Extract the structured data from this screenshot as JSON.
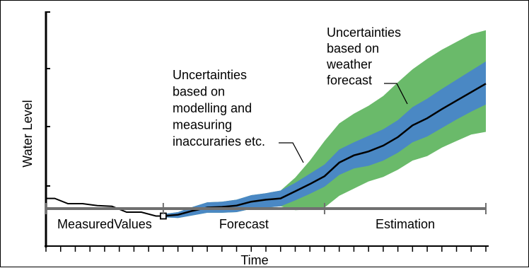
{
  "chart_data": {
    "type": "area",
    "ylabel": "Water Level",
    "xlabel": "Time",
    "grid": false,
    "phases": [
      {
        "label": "MeasuredValues",
        "start": 0,
        "end": 8
      },
      {
        "label": "Forecast",
        "start": 8,
        "end": 19
      },
      {
        "label": "Estimation",
        "start": 19,
        "end": 30
      }
    ],
    "xlim": [
      0,
      30
    ],
    "ylim": [
      0,
      3.6
    ],
    "measured": {
      "x": [
        0,
        0.6,
        1.5,
        2.5,
        3.5,
        4.5,
        5.5,
        6.5,
        7.5,
        8
      ],
      "y": [
        0.72,
        0.72,
        0.64,
        0.64,
        0.61,
        0.6,
        0.51,
        0.51,
        0.45,
        0.45
      ]
    },
    "forecast": {
      "x": [
        8,
        9,
        10,
        11,
        12,
        13,
        14,
        15,
        16,
        17,
        18,
        19,
        20,
        21,
        22,
        23,
        24,
        25,
        26,
        27,
        28,
        29,
        30
      ],
      "median": [
        0.45,
        0.47,
        0.53,
        0.58,
        0.59,
        0.61,
        0.67,
        0.7,
        0.72,
        0.83,
        0.94,
        1.06,
        1.27,
        1.38,
        1.44,
        1.53,
        1.66,
        1.84,
        1.95,
        2.09,
        2.22,
        2.35,
        2.48
      ],
      "inner_band": {
        "lower": [
          0.43,
          0.42,
          0.46,
          0.5,
          0.5,
          0.51,
          0.56,
          0.58,
          0.6,
          0.69,
          0.79,
          0.9,
          1.08,
          1.18,
          1.22,
          1.3,
          1.42,
          1.58,
          1.67,
          1.8,
          1.93,
          2.05,
          2.16
        ],
        "upper": [
          0.48,
          0.51,
          0.59,
          0.66,
          0.67,
          0.7,
          0.77,
          0.8,
          0.84,
          0.96,
          1.1,
          1.24,
          1.47,
          1.58,
          1.68,
          1.78,
          1.92,
          2.12,
          2.25,
          2.4,
          2.54,
          2.68,
          2.82
        ]
      },
      "outer_band": {
        "lower": [
          0.43,
          0.42,
          0.46,
          0.5,
          0.5,
          0.51,
          0.56,
          0.58,
          0.6,
          0.54,
          0.55,
          0.58,
          0.76,
          0.87,
          0.98,
          1.05,
          1.16,
          1.3,
          1.37,
          1.5,
          1.6,
          1.7,
          1.74
        ],
        "upper": [
          0.48,
          0.51,
          0.59,
          0.66,
          0.67,
          0.7,
          0.77,
          0.8,
          0.84,
          1.04,
          1.3,
          1.6,
          1.87,
          2.02,
          2.14,
          2.29,
          2.5,
          2.7,
          2.86,
          3.0,
          3.12,
          3.24,
          3.3
        ]
      }
    },
    "annotations": [
      {
        "text": [
          "Uncertainties",
          "based on",
          "modelling and",
          "measuring",
          "inaccuraries etc."
        ],
        "refers_to": "inner_band"
      },
      {
        "text": [
          "Uncertainties",
          "based on",
          "weather",
          "forecast"
        ],
        "refers_to": "outer_band"
      }
    ],
    "colors": {
      "outer_band": "#6aba6a",
      "inner_band": "#4a88c4",
      "line": "#000000",
      "timeline": "#707070"
    }
  }
}
